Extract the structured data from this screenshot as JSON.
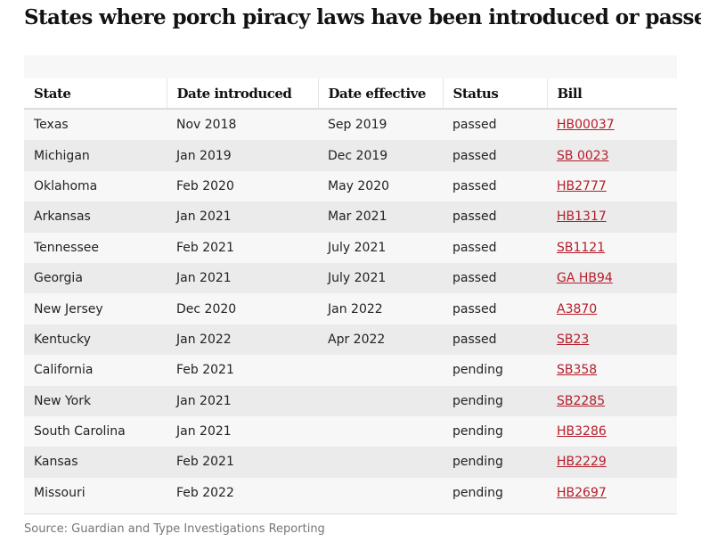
{
  "title": "States where porch piracy laws have been introduced or passed",
  "table": {
    "headers": [
      "State",
      "Date introduced",
      "Date effective",
      "Status",
      "Bill"
    ],
    "rows": [
      [
        "Texas",
        "Nov 2018",
        "Sep 2019",
        "passed",
        "HB00037"
      ],
      [
        "Michigan",
        "Jan 2019",
        "Dec 2019",
        "passed",
        "SB 0023"
      ],
      [
        "Oklahoma",
        "Feb 2020",
        "May 2020",
        "passed",
        "HB2777"
      ],
      [
        "Arkansas",
        "Jan 2021",
        "Mar 2021",
        "passed",
        "HB1317"
      ],
      [
        "Tennessee",
        "Feb 2021",
        "July 2021",
        "passed",
        "SB1121"
      ],
      [
        "Georgia",
        "Jan 2021",
        "July 2021",
        "passed",
        "GA HB94"
      ],
      [
        "New Jersey",
        "Dec 2020",
        "Jan 2022",
        "passed",
        "A3870"
      ],
      [
        "Kentucky",
        "Jan 2022",
        "Apr 2022",
        "passed",
        "SB23"
      ],
      [
        "California",
        "Feb 2021",
        "",
        "pending",
        "SB358"
      ],
      [
        "New York",
        "Jan 2021",
        "",
        "pending",
        "SB2285"
      ],
      [
        "South Carolina",
        "Jan 2021",
        "",
        "pending",
        "HB3286"
      ],
      [
        "Kansas",
        "Feb 2021",
        "",
        "pending",
        "HB2229"
      ],
      [
        "Missouri",
        "Feb 2022",
        "",
        "pending",
        "HB2697"
      ]
    ]
  },
  "source": "Source: Guardian and Type Investigations Reporting",
  "colors": {
    "link": "#b51c2a",
    "row_alt": "#ebebeb",
    "row": "#f7f7f7"
  }
}
